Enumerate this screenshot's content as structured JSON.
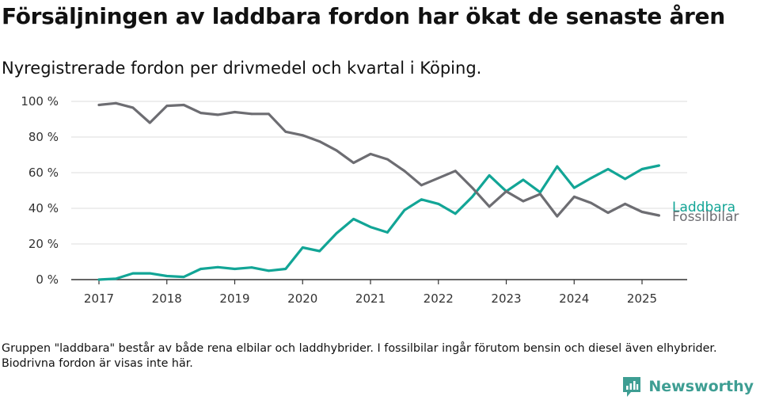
{
  "title": "Försäljningen av laddbara fordon har ökat de senaste åren",
  "subtitle": "Nyregistrerade fordon per drivmedel och kvartal i Köping.",
  "footnote": "Gruppen \"laddbara\" består av både rena elbilar och laddhybrider. I fossilbilar ingår förutom bensin och diesel även elhybrider. Biodrivna fordon är visas inte här.",
  "brand": {
    "name": "Newsworthy",
    "icon": "newsworthy-logo-icon",
    "color": "#3e9e93"
  },
  "chart_data": {
    "type": "line",
    "x": [
      "2017Q1",
      "2017Q2",
      "2017Q3",
      "2017Q4",
      "2018Q1",
      "2018Q2",
      "2018Q3",
      "2018Q4",
      "2019Q1",
      "2019Q2",
      "2019Q3",
      "2019Q4",
      "2020Q1",
      "2020Q2",
      "2020Q3",
      "2020Q4",
      "2021Q1",
      "2021Q2",
      "2021Q3",
      "2021Q4",
      "2022Q1",
      "2022Q2",
      "2022Q3",
      "2022Q4",
      "2023Q1",
      "2023Q2",
      "2023Q3",
      "2023Q4",
      "2024Q1",
      "2024Q2",
      "2024Q3",
      "2024Q4",
      "2025Q1",
      "2025Q2"
    ],
    "x_ticks": [
      "2017",
      "2018",
      "2019",
      "2020",
      "2021",
      "2022",
      "2023",
      "2024",
      "2025"
    ],
    "y_ticks": [
      "0 %",
      "20 %",
      "40 %",
      "60 %",
      "80 %",
      "100 %"
    ],
    "ylim": [
      0,
      100
    ],
    "grid": true,
    "series": [
      {
        "name": "Laddbara",
        "color": "#12a596",
        "values": [
          0,
          0.5,
          3.5,
          3.5,
          2,
          1.5,
          6,
          7,
          6,
          6.8,
          5,
          6,
          18,
          16,
          26,
          34,
          29.5,
          26.5,
          39,
          45,
          42.5,
          37,
          46.5,
          58.5,
          49.5,
          56,
          49,
          63.5,
          51.5,
          57,
          62,
          56.5,
          62,
          64
        ]
      },
      {
        "name": "Fossilbilar",
        "color": "#6d6d72",
        "values": [
          98,
          99,
          96.5,
          88,
          97.5,
          98,
          93.5,
          92.5,
          94,
          93,
          93,
          83,
          81,
          77.5,
          72.5,
          65.5,
          70.5,
          67.5,
          61,
          53,
          57,
          61,
          51.5,
          41,
          49.5,
          44,
          48,
          35.5,
          46.5,
          43,
          37.5,
          42.5,
          38,
          36
        ]
      }
    ]
  }
}
